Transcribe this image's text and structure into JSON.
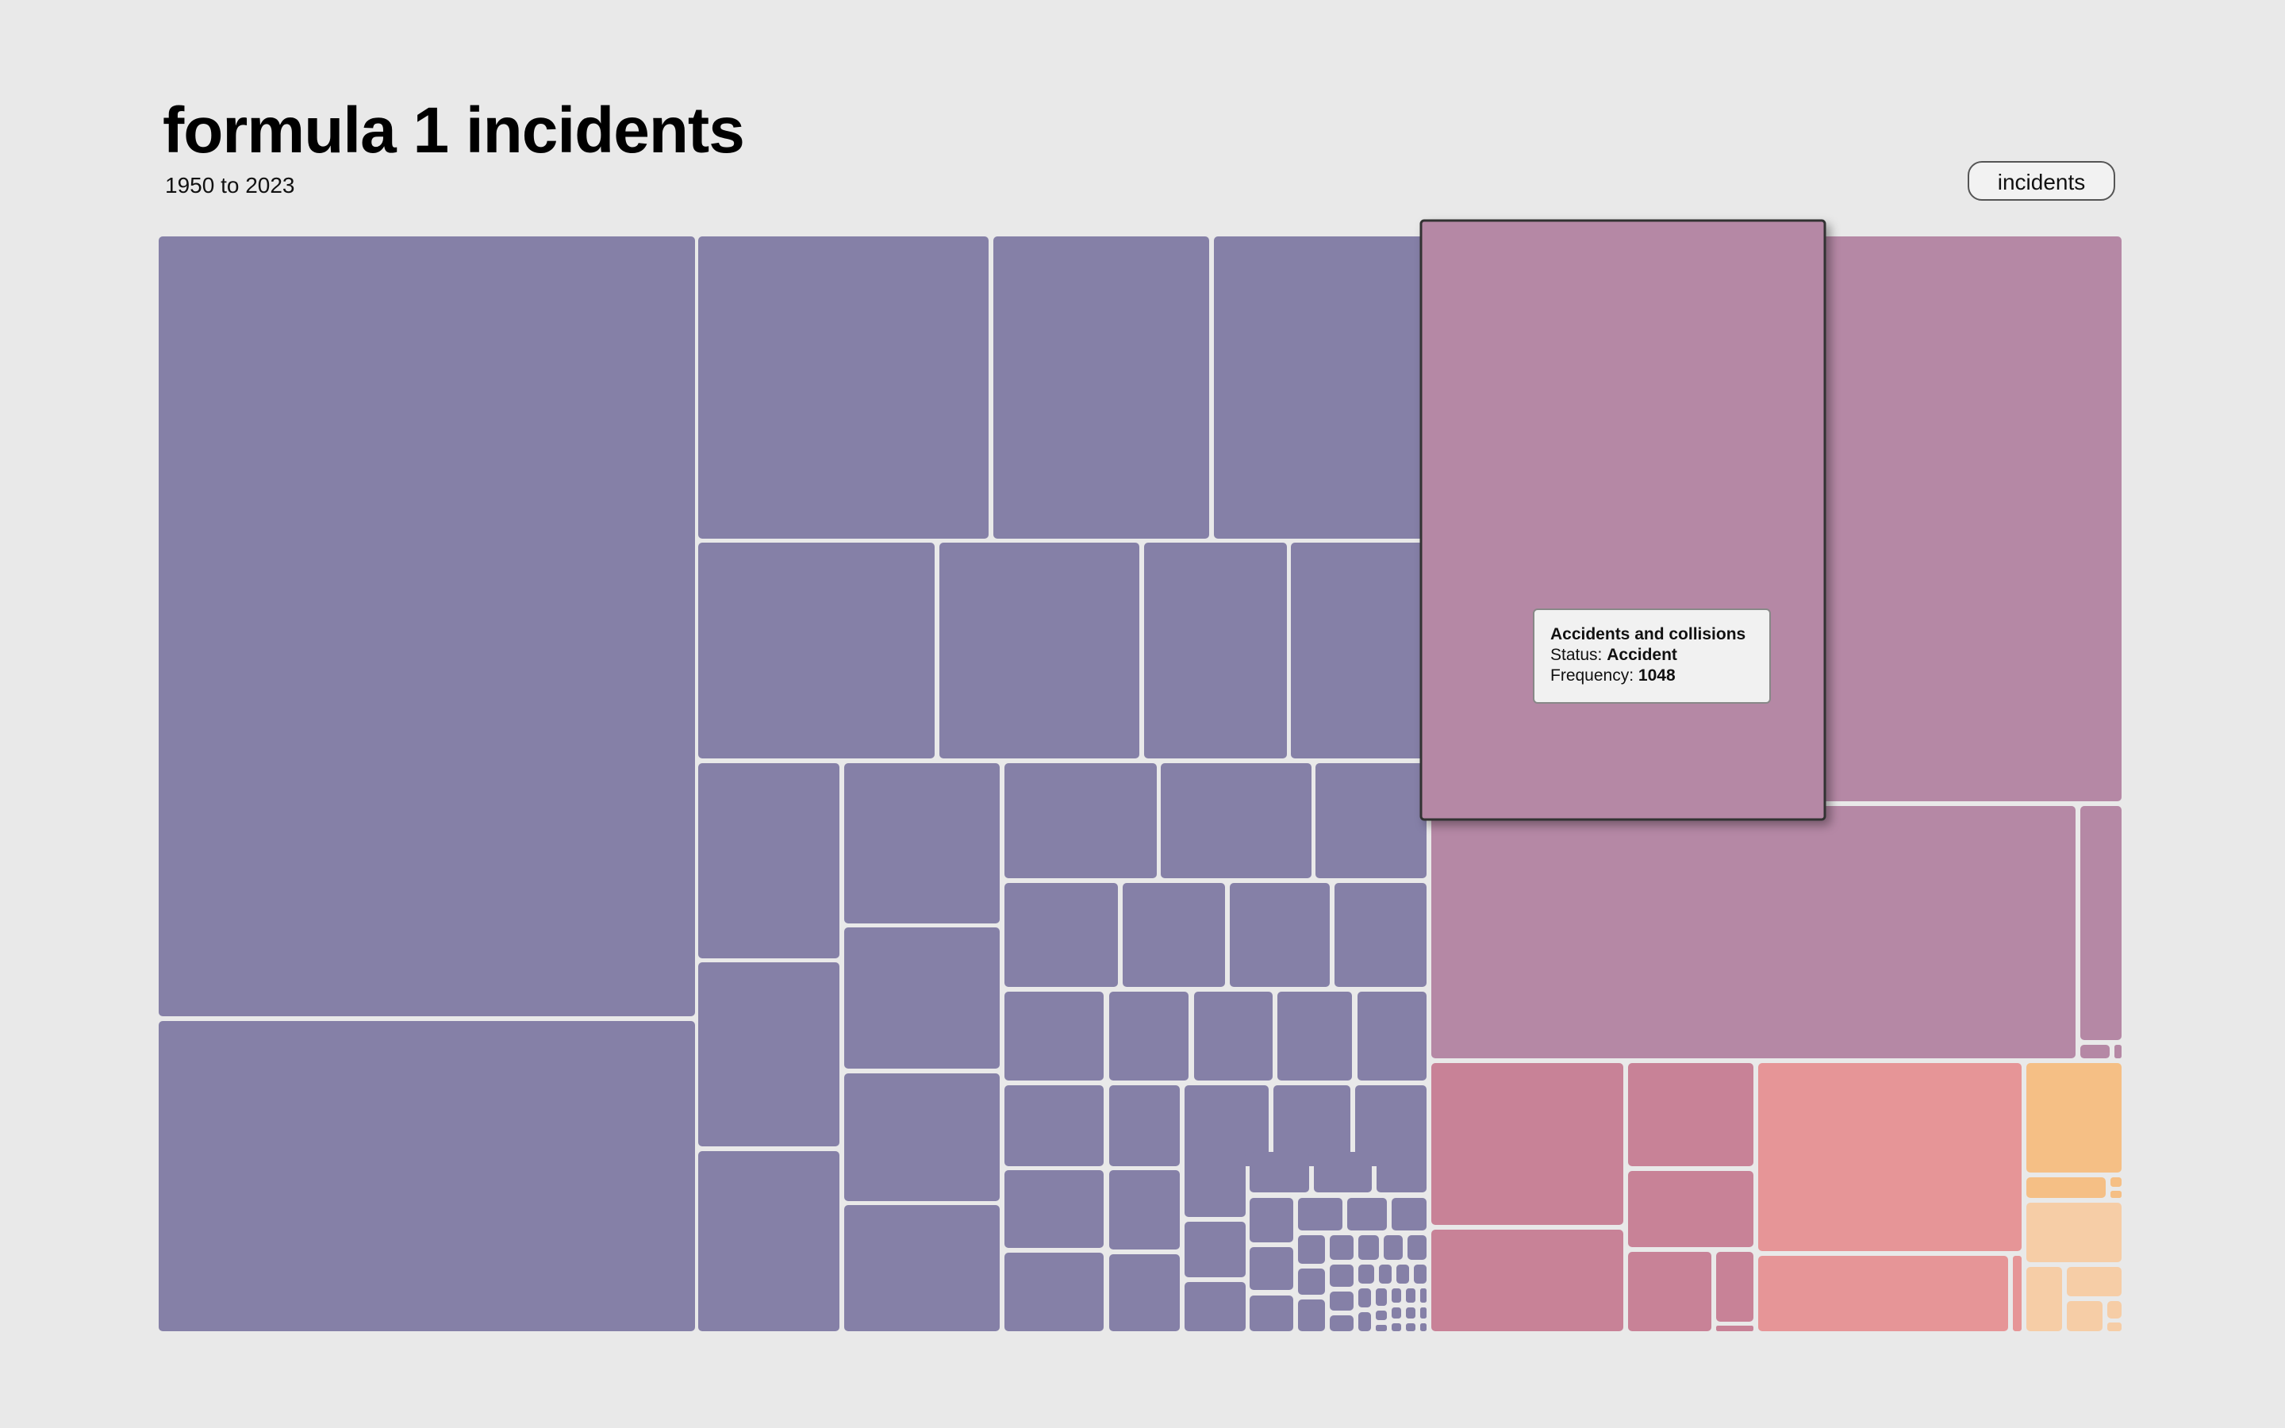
{
  "title": "formula 1 incidents",
  "subtitle": "1950 to 2023",
  "metric_button": "incidents",
  "tooltip": {
    "name": "Accidents and collisions",
    "status_label": "Status:",
    "status_value": "Accident",
    "frequency_label": "Frequency:",
    "frequency_value": "1048"
  },
  "colors": {
    "background": "#e9e9e9",
    "mechanical": "#8580a7",
    "accidents": "#b588a5",
    "disqualified": "#c88297",
    "other": "#e69597",
    "misc": "#f5bf85",
    "misc_light": "#f6cda6",
    "tile_border": "#ffffff",
    "highlight_border": "#333333"
  },
  "chart_data": {
    "type": "treemap",
    "title": "formula 1 incidents",
    "subtitle": "1950 to 2023",
    "value_label": "Frequency",
    "groups": [
      {
        "key": "mechanical",
        "approx_total": 5850,
        "tile_count": 110
      },
      {
        "key": "accidents",
        "approx_total": 2000,
        "tile_count": 6
      },
      {
        "key": "disqualified",
        "approx_total": 470,
        "tile_count": 7
      },
      {
        "key": "other",
        "approx_total": 420,
        "tile_count": 3
      },
      {
        "key": "misc",
        "approx_total": 180,
        "tile_count": 11
      }
    ],
    "highlighted": {
      "name": "Accidents and collisions",
      "status": "Accident",
      "frequency": 1048
    }
  }
}
